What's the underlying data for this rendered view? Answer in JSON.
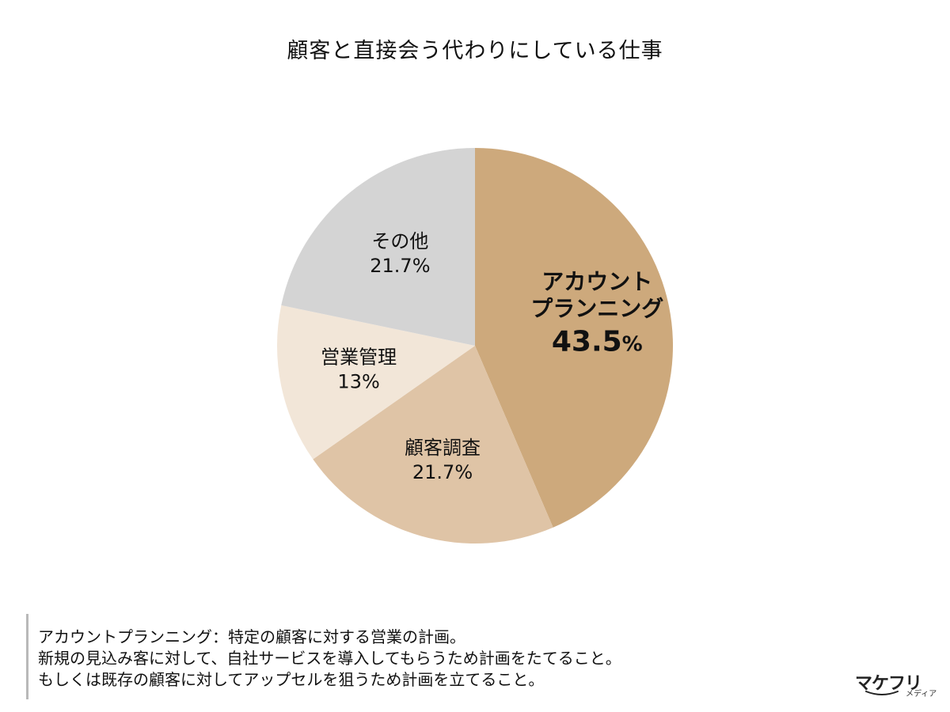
{
  "chart_data": {
    "type": "pie",
    "title": "顧客と直接会う代わりにしている仕事",
    "start_angle_deg": 0,
    "direction": "clockwise",
    "slices": [
      {
        "label": "アカウント\nプランニング",
        "value": 43.5,
        "display": "43.5",
        "unit": "%",
        "color": "#cda97c",
        "emphasis": true
      },
      {
        "label": "顧客調査",
        "value": 21.7,
        "display": "21.7",
        "unit": "%",
        "color": "#dfc4a6",
        "emphasis": false
      },
      {
        "label": "営業管理",
        "value": 13,
        "display": "13",
        "unit": "%",
        "color": "#f2e6d8",
        "emphasis": false
      },
      {
        "label": "その他",
        "value": 21.7,
        "display": "21.7",
        "unit": "%",
        "color": "#d4d4d4",
        "emphasis": false
      }
    ]
  },
  "note": {
    "lines": [
      "アカウントプランニング：特定の顧客に対する営業の計画。",
      "新規の見込み客に対して、自社サービスを導入してもらうため計画をたてること。",
      "もしくは既存の顧客に対してアップセルを狙うため計画を立てること。"
    ]
  },
  "brand": {
    "name": "マケフリ",
    "sub": "メディア"
  }
}
